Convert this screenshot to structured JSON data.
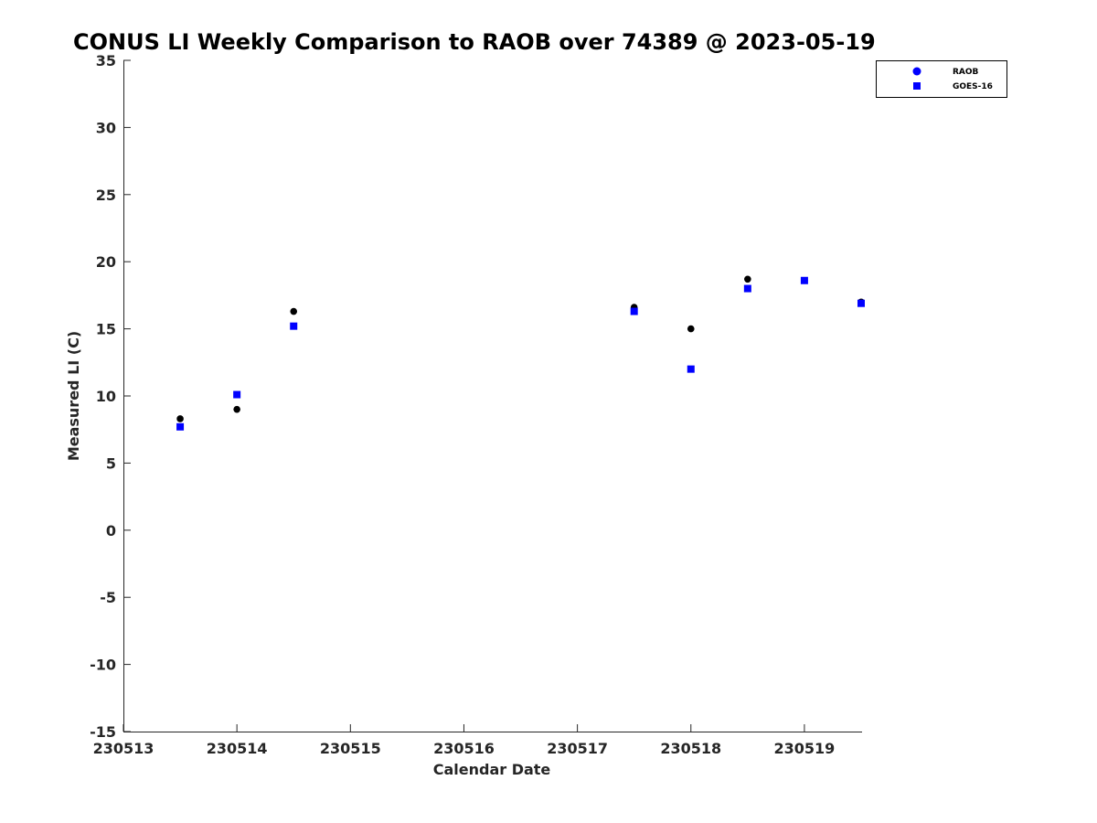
{
  "chart_data": {
    "type": "scatter",
    "title": "CONUS LI Weekly Comparison to RAOB over 74389 @ 2023-05-19",
    "xlabel": "Calendar Date",
    "ylabel": "Measured LI (C)",
    "xlim": [
      "230513",
      "230519.5"
    ],
    "ylim": [
      -15,
      35
    ],
    "xtick_labels": [
      "230513",
      "230514",
      "230515",
      "230516",
      "230517",
      "230518",
      "230519"
    ],
    "ytick_labels": [
      "-15",
      "-10",
      "-5",
      "0",
      "5",
      "10",
      "15",
      "20",
      "25",
      "30",
      "35"
    ],
    "grid": false,
    "legend_position": "top-right",
    "series": [
      {
        "name": "RAOB",
        "marker": "circle",
        "color": "#000000",
        "legend_color": "#0000ff",
        "points": [
          {
            "x": 230513.5,
            "y": 8.3
          },
          {
            "x": 230514.0,
            "y": 9.0
          },
          {
            "x": 230514.5,
            "y": 16.3
          },
          {
            "x": 230517.5,
            "y": 16.6
          },
          {
            "x": 230518.0,
            "y": 15.0
          },
          {
            "x": 230518.5,
            "y": 18.7
          },
          {
            "x": 230519.0,
            "y": 18.6
          },
          {
            "x": 230519.5,
            "y": 17.0
          }
        ]
      },
      {
        "name": "GOES-16",
        "marker": "square",
        "color": "#0000ff",
        "legend_color": "#0000ff",
        "points": [
          {
            "x": 230513.5,
            "y": 7.7
          },
          {
            "x": 230514.0,
            "y": 10.1
          },
          {
            "x": 230514.5,
            "y": 15.2
          },
          {
            "x": 230517.5,
            "y": 16.3
          },
          {
            "x": 230518.0,
            "y": 12.0
          },
          {
            "x": 230518.5,
            "y": 18.0
          },
          {
            "x": 230519.0,
            "y": 18.6
          },
          {
            "x": 230519.5,
            "y": 16.9
          }
        ]
      }
    ]
  }
}
